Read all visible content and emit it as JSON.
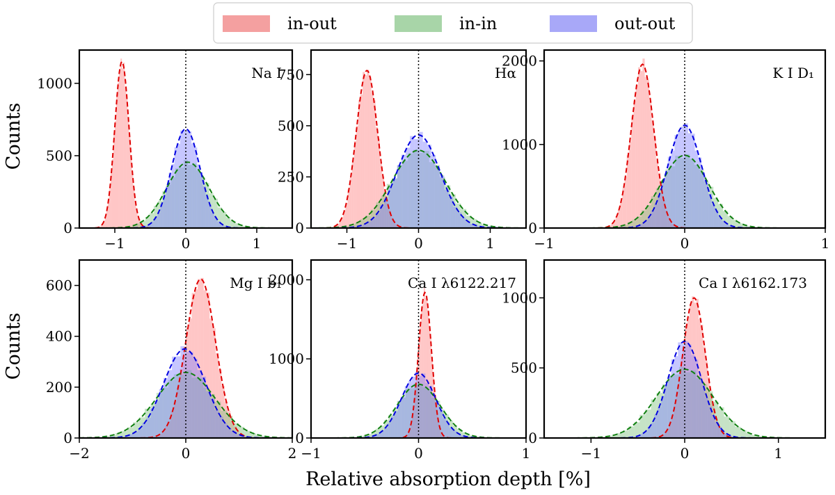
{
  "figure": {
    "xlabel": "Relative absorption depth [%]",
    "ylabel": "Counts",
    "legend_position": "top-center"
  },
  "legend": [
    {
      "name": "in-out",
      "color": "#f4a0a0"
    },
    {
      "name": "in-in",
      "color": "#a8d5a8"
    },
    {
      "name": "out-out",
      "color": "#a8a8f8"
    }
  ],
  "colors": {
    "in-out": {
      "fill": "#ff8080",
      "line": "#e00000"
    },
    "in-in": {
      "fill": "#80c080",
      "line": "#108010"
    },
    "out-out": {
      "fill": "#8080ff",
      "line": "#0000e0"
    }
  },
  "chart_data": [
    {
      "type": "area",
      "label": "Na I",
      "xlim": [
        -1.5,
        1.5
      ],
      "ylim": [
        0,
        1230
      ],
      "xticks": [
        -1,
        0,
        1
      ],
      "xtick_labels": [
        "−1",
        "0",
        "1"
      ],
      "yticks": [
        0,
        500,
        1000
      ],
      "ytick_labels": [
        "0",
        "500",
        "1000"
      ],
      "ylabel": "Counts",
      "xlabel": "",
      "series": [
        {
          "name": "in-out",
          "mean": -0.9,
          "sigma": 0.1,
          "peak": 1150
        },
        {
          "name": "in-in",
          "mean": 0.03,
          "sigma": 0.3,
          "peak": 455
        },
        {
          "name": "out-out",
          "mean": 0.0,
          "sigma": 0.2,
          "peak": 685
        }
      ]
    },
    {
      "type": "area",
      "label": "Hα",
      "xlim": [
        -1.5,
        1.5
      ],
      "ylim": [
        0,
        870
      ],
      "xticks": [
        -1,
        0,
        1
      ],
      "xtick_labels": [
        "−1",
        "0",
        "1"
      ],
      "yticks": [
        0,
        250,
        500,
        750
      ],
      "ytick_labels": [
        "0",
        "250",
        "500",
        "750"
      ],
      "ylabel": "",
      "xlabel": "",
      "series": [
        {
          "name": "in-out",
          "mean": -0.72,
          "sigma": 0.15,
          "peak": 770
        },
        {
          "name": "in-in",
          "mean": 0.0,
          "sigma": 0.37,
          "peak": 380
        },
        {
          "name": "out-out",
          "mean": 0.0,
          "sigma": 0.3,
          "peak": 455
        }
      ]
    },
    {
      "type": "area",
      "label": "K I D₁",
      "xlim": [
        -1.0,
        1.0
      ],
      "ylim": [
        0,
        2130
      ],
      "xticks": [
        -1,
        0,
        1
      ],
      "xtick_labels": [
        "−1",
        "0",
        "1"
      ],
      "yticks": [
        0,
        1000,
        2000
      ],
      "ytick_labels": [
        "0",
        "1000",
        "2000"
      ],
      "ylabel": "",
      "xlabel": "",
      "series": [
        {
          "name": "in-out",
          "mean": -0.3,
          "sigma": 0.08,
          "peak": 1960
        },
        {
          "name": "in-in",
          "mean": 0.0,
          "sigma": 0.17,
          "peak": 870
        },
        {
          "name": "out-out",
          "mean": 0.0,
          "sigma": 0.12,
          "peak": 1230
        }
      ]
    },
    {
      "type": "area",
      "label": "Mg I b₁",
      "xlim": [
        -2.0,
        2.0
      ],
      "ylim": [
        0,
        700
      ],
      "xticks": [
        -2,
        0,
        2
      ],
      "xtick_labels": [
        "−2",
        "0",
        "2"
      ],
      "yticks": [
        0,
        200,
        400,
        600
      ],
      "ytick_labels": [
        "0",
        "200",
        "400",
        "600"
      ],
      "ylabel": "Counts",
      "xlabel": "",
      "series": [
        {
          "name": "in-out",
          "mean": 0.28,
          "sigma": 0.28,
          "peak": 625
        },
        {
          "name": "in-in",
          "mean": 0.0,
          "sigma": 0.55,
          "peak": 258
        },
        {
          "name": "out-out",
          "mean": -0.02,
          "sigma": 0.4,
          "peak": 350
        }
      ]
    },
    {
      "type": "area",
      "label": "Ca I λ6122.217",
      "xlim": [
        -1.0,
        1.0
      ],
      "ylim": [
        0,
        2250
      ],
      "xticks": [
        -1,
        0,
        1
      ],
      "xtick_labels": [
        "−1",
        "0",
        "1"
      ],
      "yticks": [
        0,
        1000,
        2000
      ],
      "ytick_labels": [
        "0",
        "1000",
        "2000"
      ],
      "ylabel": "",
      "xlabel": "Relative absorption depth [%]",
      "series": [
        {
          "name": "in-out",
          "mean": 0.06,
          "sigma": 0.06,
          "peak": 1840
        },
        {
          "name": "in-in",
          "mean": 0.0,
          "sigma": 0.2,
          "peak": 680
        },
        {
          "name": "out-out",
          "mean": 0.0,
          "sigma": 0.16,
          "peak": 820
        }
      ]
    },
    {
      "type": "area",
      "label": "Ca I λ6162.173",
      "xlim": [
        -1.5,
        1.5
      ],
      "ylim": [
        0,
        1270
      ],
      "xticks": [
        -1,
        0,
        1
      ],
      "xtick_labels": [
        "−1",
        "0",
        "1"
      ],
      "yticks": [
        0,
        500,
        1000
      ],
      "ytick_labels": [
        "0",
        "500",
        "1000"
      ],
      "ylabel": "",
      "xlabel": "",
      "series": [
        {
          "name": "in-out",
          "mean": 0.1,
          "sigma": 0.12,
          "peak": 1000
        },
        {
          "name": "in-in",
          "mean": 0.0,
          "sigma": 0.3,
          "peak": 490
        },
        {
          "name": "out-out",
          "mean": 0.0,
          "sigma": 0.18,
          "peak": 690
        }
      ]
    }
  ]
}
